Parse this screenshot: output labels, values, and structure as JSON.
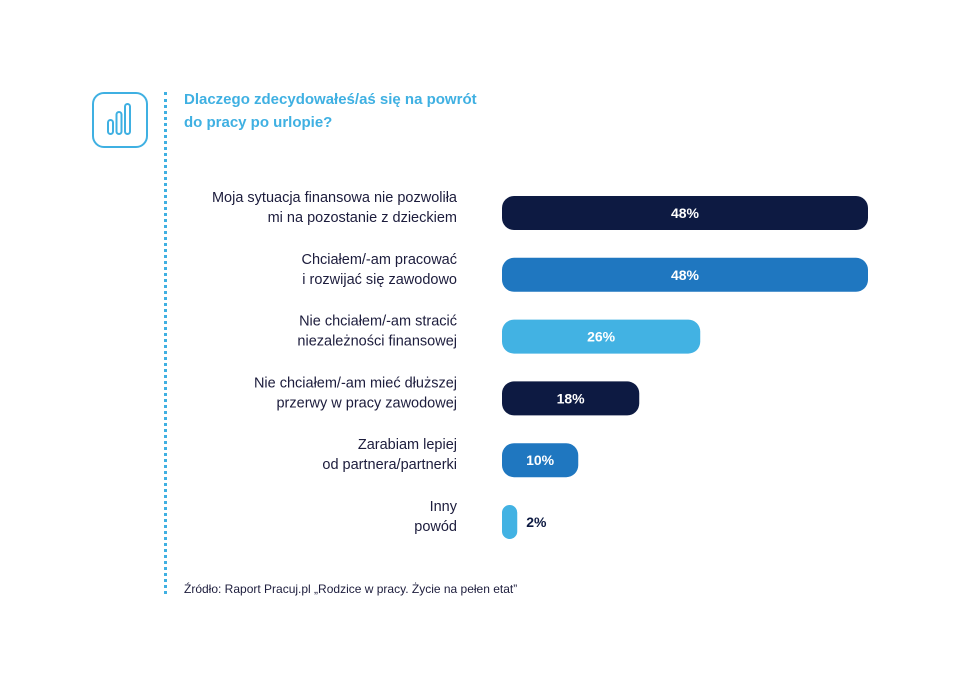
{
  "title": "Dlaczego zdecydowałeś/aś się na powrót do pracy po urlopie?",
  "icon": "bar-chart-icon",
  "source": "Źródło: Raport Pracuj.pl „Rodzice w pracy. Życie na pełen etat”",
  "colors": {
    "dark": "#0d1a42",
    "mid": "#1f77c0",
    "light": "#42b2e3",
    "accent": "#3fb0e2"
  },
  "chart_data": {
    "type": "bar",
    "orientation": "horizontal",
    "categories": [
      [
        "Moja sytuacja finansowa nie pozwoliła",
        "mi na pozostanie z dzieckiem"
      ],
      [
        "Chciałem/-am pracować",
        "i rozwijać się zawodowo"
      ],
      [
        "Nie chciałem/-am stracić",
        "niezależności finansowej"
      ],
      [
        "Nie chciałem/-am mieć dłuższej",
        "przerwy w pracy zawodowej"
      ],
      [
        "Zarabiam lepiej",
        "od partnera/partnerki"
      ],
      [
        "Inny",
        "powód"
      ]
    ],
    "values": [
      48,
      48,
      26,
      18,
      10,
      2
    ],
    "value_labels": [
      "48%",
      "48%",
      "26%",
      "18%",
      "10%",
      "2%"
    ],
    "bar_colors": [
      "#0d1a42",
      "#1f77c0",
      "#42b2e3",
      "#0d1a42",
      "#1f77c0",
      "#42b2e3"
    ],
    "unit": "%"
  }
}
